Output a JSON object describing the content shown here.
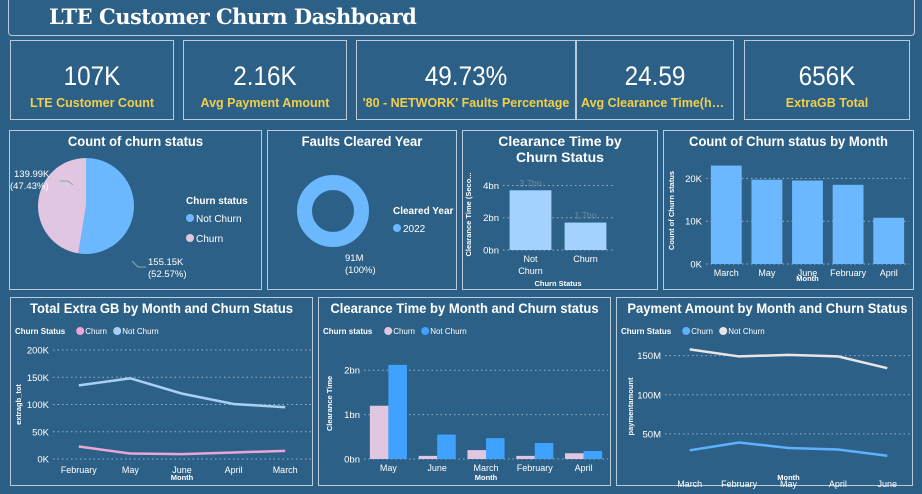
{
  "header": {
    "title": "LTE Customer Churn Dashboard"
  },
  "kpis": [
    {
      "value": "107K",
      "label": "LTE Customer Count"
    },
    {
      "value": "2.16K",
      "label": "Avg Payment Amount"
    },
    {
      "value": "49.73%",
      "label": "'80 - NETWORK' Faults Percentage"
    },
    {
      "value": "24.59",
      "label": "Avg Clearance Time(hou..."
    },
    {
      "value": "656K",
      "label": "ExtraGB Total"
    }
  ],
  "colors": {
    "background": "#2c5f86",
    "kpi_label": "#f2cf4a",
    "not_churn": "#6cb8ff",
    "churn": "#e0c6e0"
  },
  "charts": {
    "pie": {
      "title": "Count of churn status",
      "legend_title": "Churn status",
      "type": "pie",
      "slices": [
        {
          "name": "Not Churn",
          "value": 155150,
          "label": "155.15K",
          "pct": "(52.57%)",
          "color": "#6cb8ff"
        },
        {
          "name": "Churn",
          "value": 139990,
          "label": "139.99K",
          "pct": "(47.43%)",
          "color": "#e0c6e0"
        }
      ]
    },
    "donut": {
      "title": "Faults Cleared Year",
      "legend_title": "Cleared Year",
      "type": "pie",
      "slices": [
        {
          "name": "2022",
          "label": "91M",
          "pct": "(100%)",
          "value": 91000000,
          "color": "#6cb8ff"
        }
      ]
    },
    "clear_status": {
      "title": "Clearance Time by Churn Status",
      "type": "bar",
      "xlabel": "Churn Status",
      "ylabel": "Clearance Time (Seco...",
      "categories": [
        "Not Churn",
        "Churn"
      ],
      "values": [
        3.7,
        1.7
      ],
      "data_labels": [
        "3.7bn",
        "1.7bn"
      ],
      "yticks": [
        "0bn",
        "2bn",
        "4bn"
      ],
      "ylim": [
        0,
        4.4
      ],
      "color": "#a3d2ff"
    },
    "count_month": {
      "title": "Count of Churn status by Month",
      "type": "bar",
      "xlabel": "Month",
      "ylabel": "Count of Churn status",
      "categories": [
        "March",
        "May",
        "June",
        "February",
        "April"
      ],
      "values": [
        23000,
        19700,
        19500,
        18500,
        10800
      ],
      "yticks": [
        "0K",
        "10K",
        "20K"
      ],
      "ylim": [
        0,
        25000
      ],
      "color": "#6cb8ff"
    },
    "extra_gb": {
      "title": "Total Extra GB by Month and Churn Status",
      "type": "line",
      "legend_title": "Churn Status",
      "xlabel": "Month",
      "ylabel": "extragb_tot",
      "categories": [
        "February",
        "May",
        "June",
        "April",
        "March"
      ],
      "yticks": [
        "0K",
        "50K",
        "100K",
        "150K",
        "200K"
      ],
      "ylim": [
        0,
        200000
      ],
      "series": [
        {
          "name": "Churn",
          "values": [
            23000,
            10000,
            9000,
            12000,
            15000
          ],
          "color": "#e9a6d6"
        },
        {
          "name": "Not Churn",
          "values": [
            135000,
            148000,
            120000,
            101000,
            95000
          ],
          "color": "#a8d0f5"
        }
      ]
    },
    "clear_month": {
      "title": "Clearance Time by Month and Churn status",
      "type": "bar",
      "legend_title": "Churn status",
      "xlabel": "Month",
      "ylabel": "Clearance Time",
      "categories": [
        "May",
        "June",
        "March",
        "February",
        "April"
      ],
      "yticks": [
        "0bn",
        "1bn",
        "2bn"
      ],
      "ylim": [
        0,
        2.5
      ],
      "series": [
        {
          "name": "Churn",
          "values": [
            1.2,
            0.07,
            0.2,
            0.07,
            0.13
          ],
          "color": "#e0c6e0"
        },
        {
          "name": "Not Churn",
          "values": [
            2.12,
            0.55,
            0.47,
            0.36,
            0.18
          ],
          "color": "#3fa2ff"
        }
      ]
    },
    "payment": {
      "title": "Payment Amount by Month and Churn Status",
      "type": "line",
      "legend_title": "Churn Status",
      "xlabel": "Month",
      "ylabel": "paymentamount",
      "categories": [
        "March",
        "February",
        "May",
        "April",
        "June"
      ],
      "yticks": [
        "50M",
        "100M",
        "150M"
      ],
      "ytick_values": [
        50,
        100,
        150
      ],
      "ylim": [
        0,
        170
      ],
      "series": [
        {
          "name": "Churn",
          "values": [
            29,
            39,
            32,
            30,
            22
          ],
          "color": "#5fb0ff"
        },
        {
          "name": "Not Churn",
          "values": [
            158,
            149,
            151,
            149,
            134
          ],
          "color": "#e6e6e6"
        }
      ]
    }
  }
}
